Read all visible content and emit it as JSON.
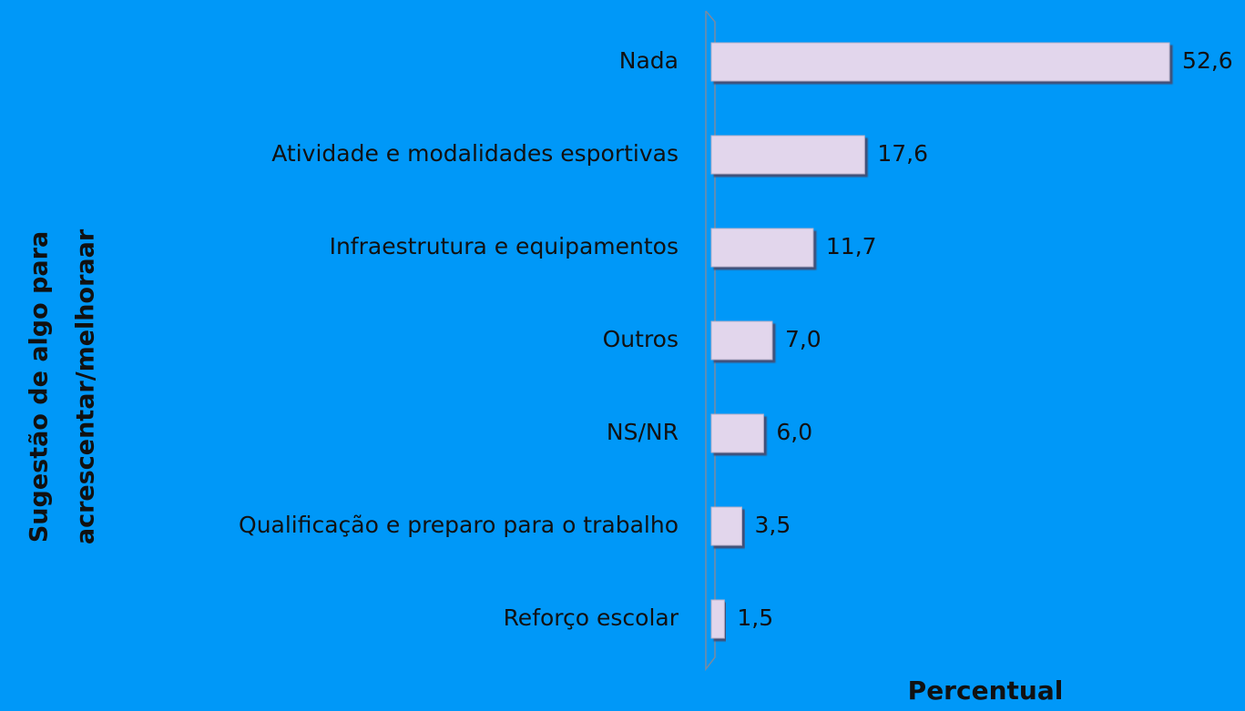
{
  "chart_data": {
    "type": "bar",
    "orientation": "horizontal",
    "categories": [
      "Nada",
      "Atividade e modalidades esportivas",
      "Infraestrutura e equipamentos",
      "Outros",
      "NS/NR",
      "Qualificação e preparo para o trabalho",
      "Reforço escolar"
    ],
    "values": [
      52.6,
      17.6,
      11.7,
      7.0,
      6.0,
      3.5,
      1.5
    ],
    "value_labels": [
      "52,6",
      "17,6",
      "11,7",
      "7,0",
      "6,0",
      "3,5",
      "1,5"
    ],
    "color": "#e2d6ec",
    "xlim": [
      0,
      55
    ],
    "xlabel": "Percentual",
    "ylabel": [
      "Sugestão de algo para",
      "acrescentar/melhoraar"
    ]
  }
}
